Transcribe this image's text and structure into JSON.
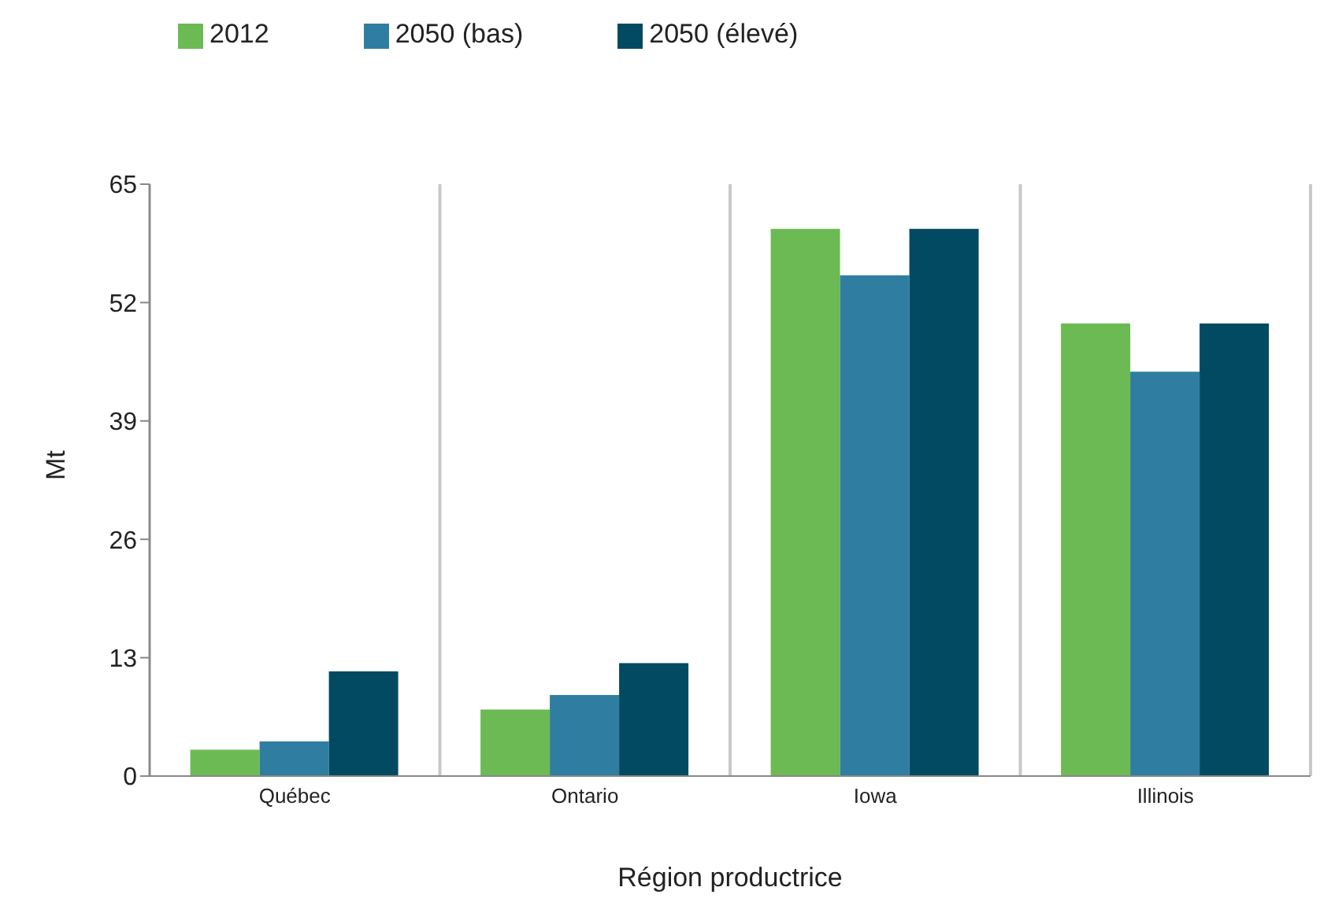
{
  "chart_data": {
    "type": "bar",
    "xlabel": "Région productrice",
    "ylabel": "Mt",
    "categories": [
      "Québec",
      "Ontario",
      "Iowa",
      "Illinois"
    ],
    "series": [
      {
        "name": "2012",
        "color": "#6cba53",
        "values": [
          2.9,
          7.3,
          60.1,
          49.7
        ]
      },
      {
        "name": "2050 (bas)",
        "color": "#2f7ea1",
        "values": [
          3.8,
          8.9,
          55.0,
          44.4
        ]
      },
      {
        "name": "2050 (élevé)",
        "color": "#024a62",
        "values": [
          11.5,
          12.4,
          60.1,
          49.7
        ]
      }
    ],
    "ylim": [
      0,
      65
    ],
    "yticks": [
      0,
      13,
      26,
      39,
      52,
      65
    ],
    "grid": "x",
    "legend": "top"
  }
}
